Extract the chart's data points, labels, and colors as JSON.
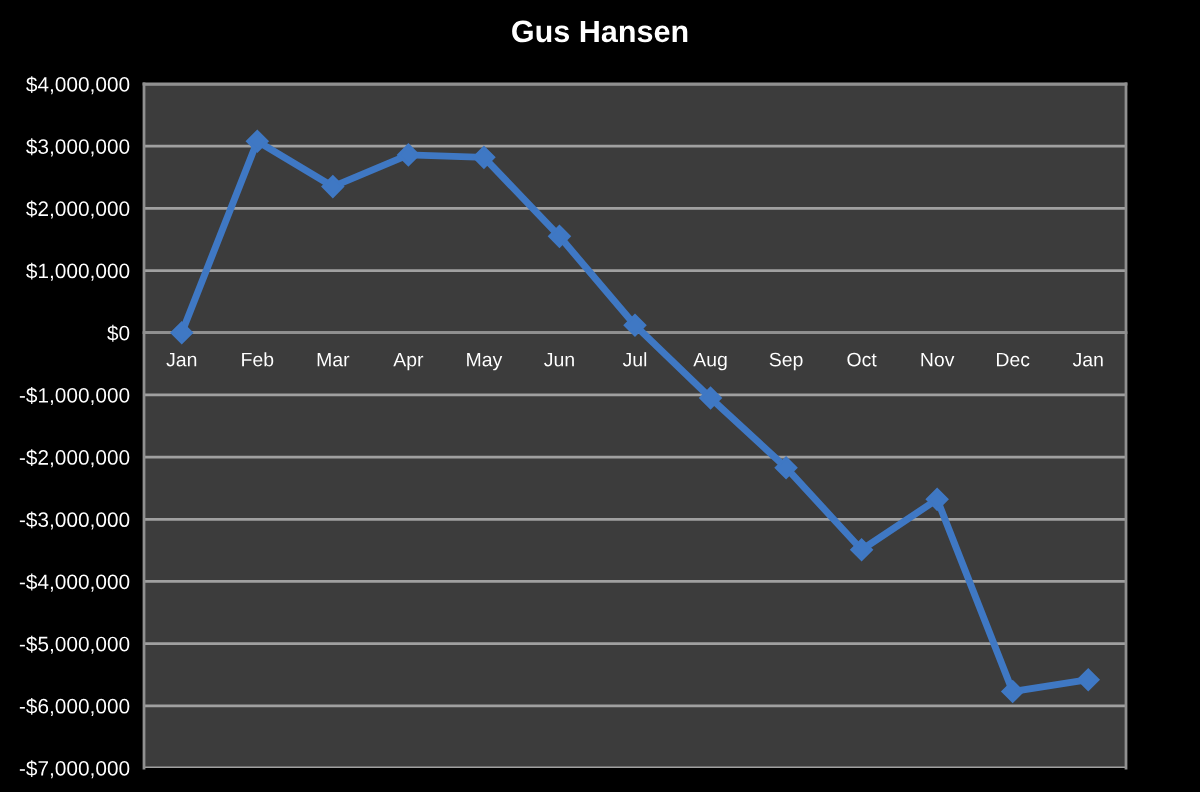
{
  "chart_data": {
    "type": "line",
    "title": "Gus Hansen",
    "categories": [
      "Jan",
      "Feb",
      "Mar",
      "Apr",
      "May",
      "Jun",
      "Jul",
      "Aug",
      "Sep",
      "Oct",
      "Nov",
      "Dec",
      "Jan"
    ],
    "series": [
      {
        "color": "#3f78c4",
        "values": [
          0,
          3080000,
          2350000,
          2860000,
          2820000,
          1550000,
          120000,
          -1050000,
          -2170000,
          -3490000,
          -2680000,
          -5770000,
          -5580000
        ]
      }
    ],
    "ylim": [
      -7000000,
      4000000
    ],
    "yticks": [
      {
        "value": -7000000,
        "label": "-$7,000,000"
      },
      {
        "value": -6000000,
        "label": "-$6,000,000"
      },
      {
        "value": -5000000,
        "label": "-$5,000,000"
      },
      {
        "value": -4000000,
        "label": "-$4,000,000"
      },
      {
        "value": -3000000,
        "label": "-$3,000,000"
      },
      {
        "value": -2000000,
        "label": "-$2,000,000"
      },
      {
        "value": -1000000,
        "label": "-$1,000,000"
      },
      {
        "value": 0,
        "label": "$0"
      },
      {
        "value": 1000000,
        "label": "$1,000,000"
      },
      {
        "value": 2000000,
        "label": "$2,000,000"
      },
      {
        "value": 3000000,
        "label": "$3,000,000"
      },
      {
        "value": 4000000,
        "label": "$4,000,000"
      }
    ],
    "grid": "y",
    "marker": "diamond",
    "line_style": "solid"
  }
}
